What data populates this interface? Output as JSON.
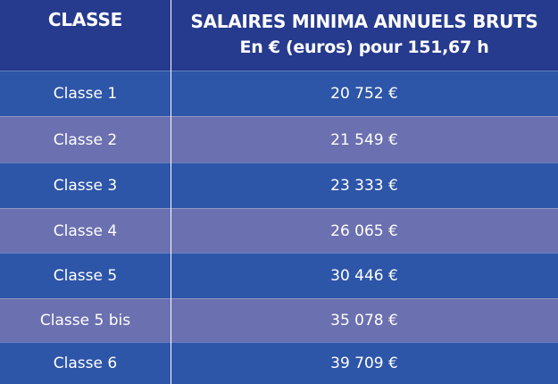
{
  "header": {
    "class_label": "CLASSE",
    "salary_title": "SALAIRES MINIMA ANNUELS BRUTS",
    "salary_subtitle": "En € (euros) pour 151,67 h"
  },
  "rows": [
    {
      "classe": "Classe 1",
      "salaire": "20 752 €"
    },
    {
      "classe": "Classe 2",
      "salaire": "21 549 €"
    },
    {
      "classe": "Classe 3",
      "salaire": "23 333 €"
    },
    {
      "classe": "Classe 4",
      "salaire": "26 065 €"
    },
    {
      "classe": "Classe 5",
      "salaire": "30 446 €"
    },
    {
      "classe": "Classe 5 bis",
      "salaire": "35 078 €"
    },
    {
      "classe": "Classe 6",
      "salaire": "39 709 €"
    }
  ],
  "colors": {
    "header_bg": "#263a8e",
    "row_dark": "#2d55a8",
    "row_light": "#6b70b0",
    "text": "#ffffff"
  }
}
